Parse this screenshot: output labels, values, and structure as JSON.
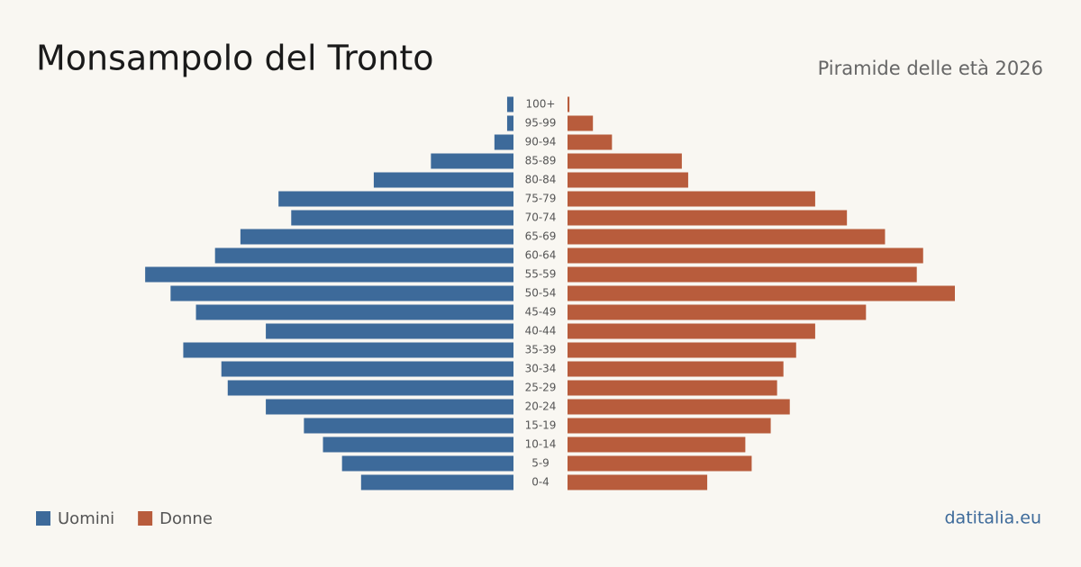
{
  "chart_data": {
    "type": "pyramid",
    "title": "Monsampolo del Tronto",
    "subtitle": "Piramide delle età 2026",
    "categories": [
      "100+",
      "95-99",
      "90-94",
      "85-89",
      "80-84",
      "75-79",
      "70-74",
      "65-69",
      "60-64",
      "55-59",
      "50-54",
      "45-49",
      "40-44",
      "35-39",
      "30-34",
      "25-29",
      "20-24",
      "15-19",
      "10-14",
      "5-9",
      "0-4"
    ],
    "series": [
      {
        "name": "Uomini",
        "color": "#3d6a9a",
        "values": [
          1,
          1,
          3,
          13,
          22,
          37,
          35,
          43,
          47,
          58,
          54,
          50,
          39,
          52,
          46,
          45,
          39,
          33,
          30,
          27,
          24
        ]
      },
      {
        "name": "Donne",
        "color": "#b85c3c",
        "values": [
          0.3,
          4,
          7,
          18,
          19,
          39,
          44,
          50,
          56,
          55,
          61,
          47,
          39,
          36,
          34,
          33,
          35,
          32,
          28,
          29,
          22
        ]
      }
    ],
    "source": "datitalia.eu"
  }
}
